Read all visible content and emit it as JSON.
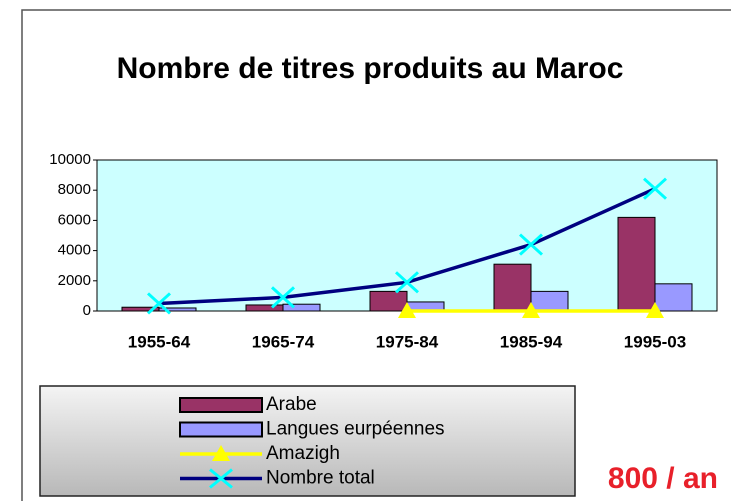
{
  "chart_data": {
    "type": "bar",
    "title": "Nombre de titres produits au Maroc",
    "categories": [
      "1955-64",
      "1965-74",
      "1975-84",
      "1985-94",
      "1995-03"
    ],
    "series": [
      {
        "name": "Arabe",
        "type": "bar",
        "color": "#993366",
        "values": [
          250,
          400,
          1300,
          3100,
          6200
        ]
      },
      {
        "name": "Langues eurpéennes",
        "type": "bar",
        "color": "#9999ff",
        "values": [
          200,
          450,
          600,
          1300,
          1800
        ]
      },
      {
        "name": "Amazigh",
        "type": "line",
        "color": "#ffff00",
        "marker": "triangle",
        "values": [
          null,
          null,
          0,
          0,
          0
        ]
      },
      {
        "name": "Nombre total",
        "type": "line",
        "color": "#000080",
        "marker": "x",
        "marker_color": "#00ffff",
        "values": [
          500,
          900,
          1900,
          4400,
          8100
        ]
      }
    ],
    "ylim": [
      0,
      10000
    ],
    "yticks": [
      0,
      2000,
      4000,
      6000,
      8000,
      10000
    ],
    "plot_background": "#ccffff",
    "legend": "bottom",
    "annotation": "800 / an"
  }
}
